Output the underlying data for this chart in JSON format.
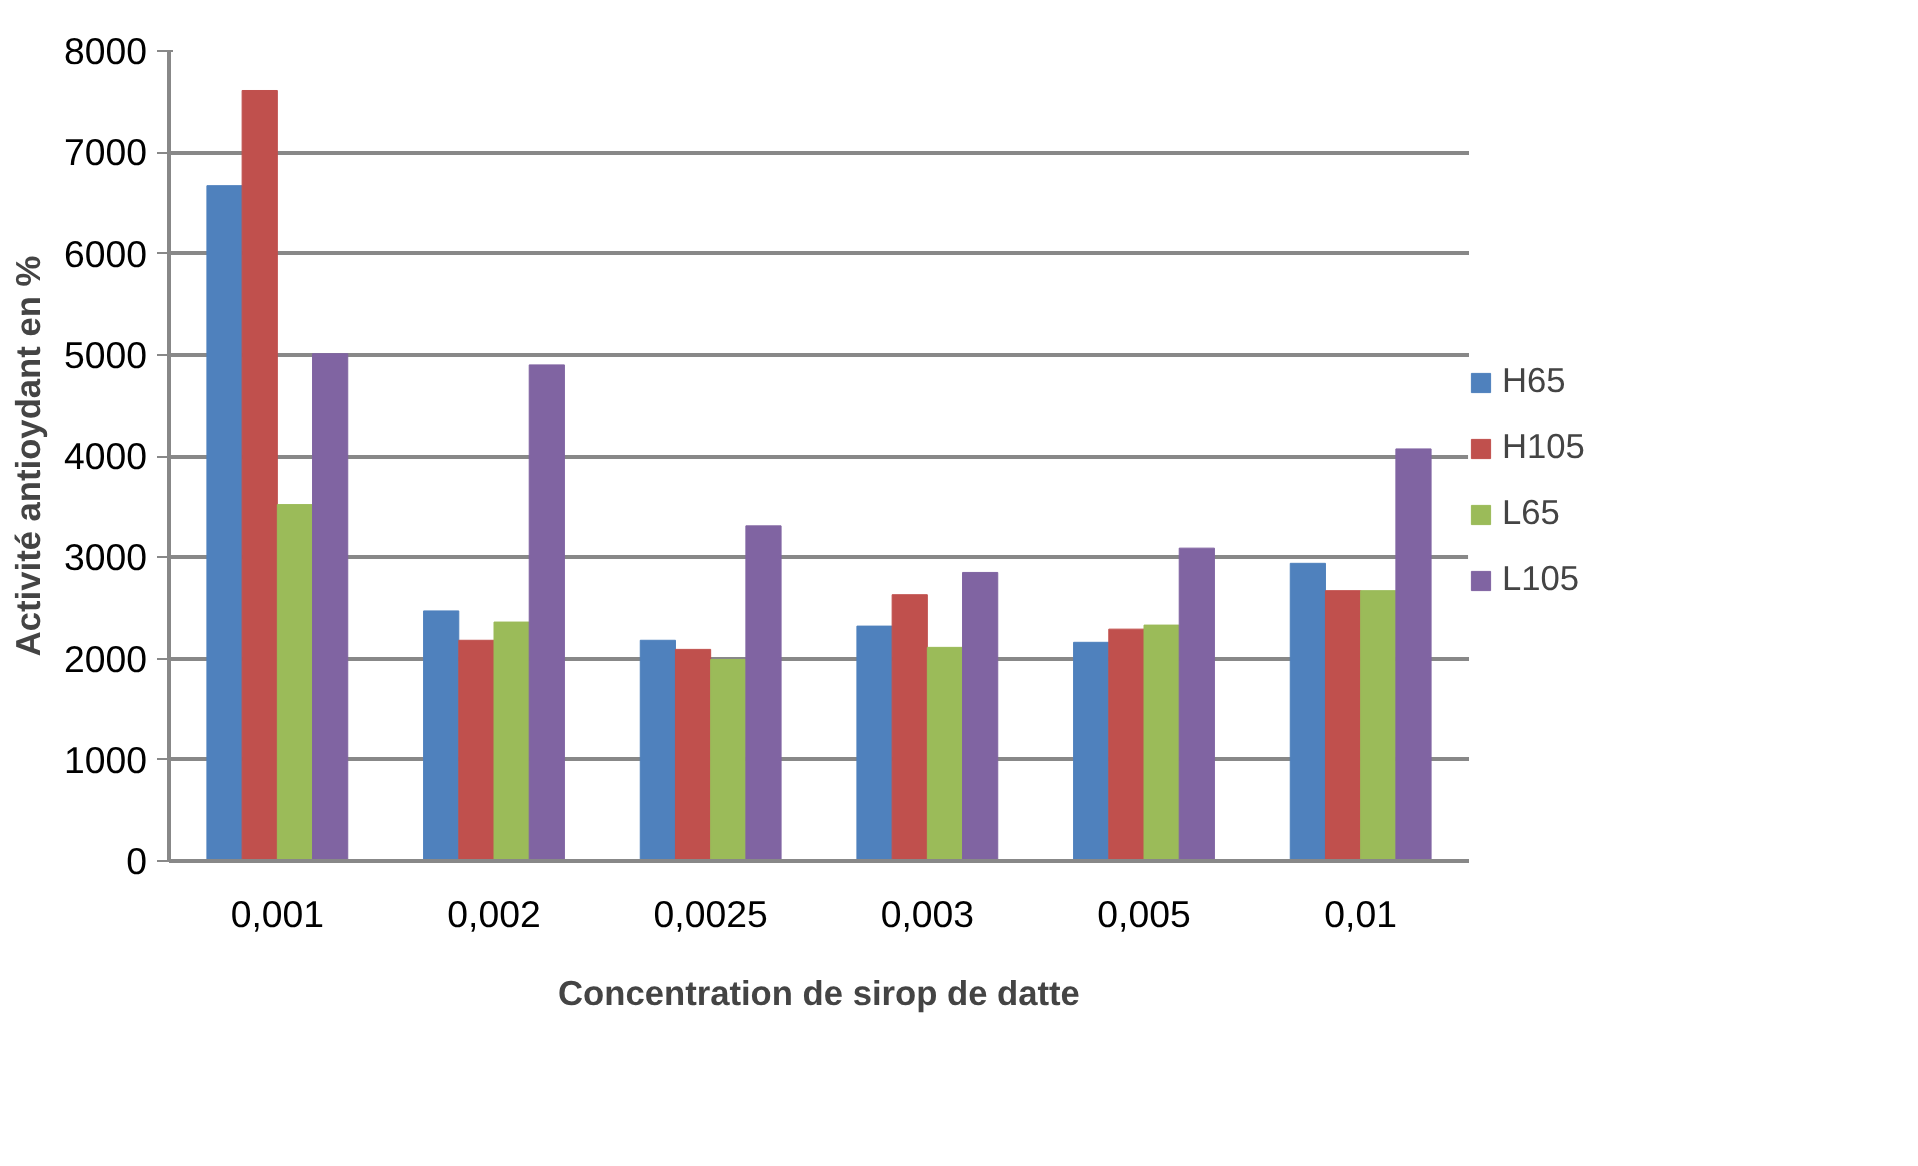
{
  "chart_data": {
    "type": "bar",
    "xlabel": "Concentration de sirop de datte",
    "ylabel": "Activité antioydant en %",
    "categories": [
      "0,001",
      "0,002",
      "0,0025",
      "0,003",
      "0,005",
      "0,01"
    ],
    "series": [
      {
        "name": "H65",
        "color": "#4f81bd",
        "values": [
          6670,
          2470,
          2180,
          2320,
          2160,
          2940
        ]
      },
      {
        "name": "H105",
        "color": "#c0504d",
        "values": [
          7610,
          2180,
          2090,
          2630,
          2290,
          2670
        ]
      },
      {
        "name": "L65",
        "color": "#9bbb59",
        "values": [
          3520,
          2360,
          1990,
          2110,
          2330,
          2670
        ]
      },
      {
        "name": "L105",
        "color": "#8064a2",
        "values": [
          5010,
          4900,
          3310,
          2850,
          3090,
          4070
        ]
      }
    ],
    "ylim": [
      0,
      8000
    ],
    "yticks": [
      0,
      1000,
      2000,
      3000,
      4000,
      5000,
      6000,
      7000,
      8000
    ],
    "grid": "y",
    "legend": "right"
  }
}
